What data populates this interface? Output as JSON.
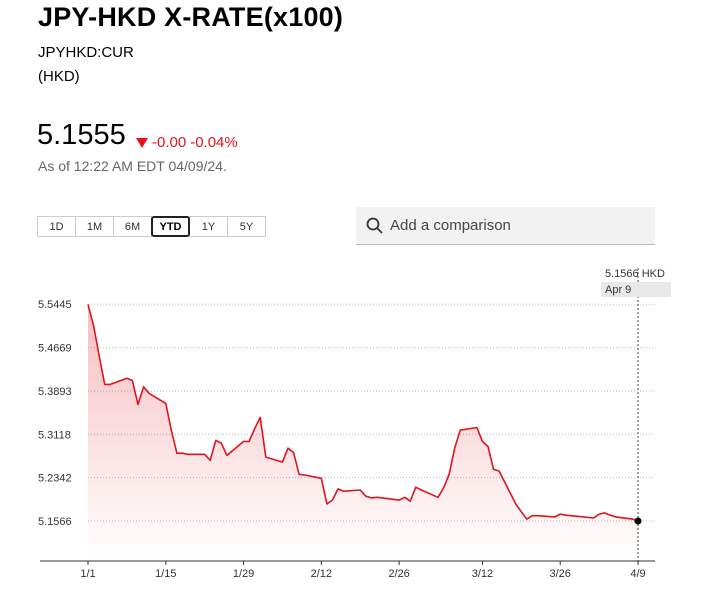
{
  "header": {
    "title": "JPY-HKD X-RATE(x100)",
    "ticker": "JPYHKD:CUR",
    "currency": "(HKD)",
    "price": "5.1555",
    "change": "-0.00",
    "change_pct": "-0.04%",
    "as_of": "As of 12:22 AM EDT 04/09/24."
  },
  "controls": {
    "ranges": [
      "1D",
      "1M",
      "6M",
      "YTD",
      "1Y",
      "5Y"
    ],
    "active_range": "YTD",
    "search_placeholder": "Add a comparison"
  },
  "chart_data": {
    "type": "line",
    "color": "#e0141e",
    "x": [
      "1/1",
      "1/2",
      "1/3",
      "1/4",
      "1/5",
      "1/8",
      "1/9",
      "1/10",
      "1/11",
      "1/12",
      "1/15",
      "1/16",
      "1/17",
      "1/18",
      "1/19",
      "1/22",
      "1/23",
      "1/24",
      "1/25",
      "1/26",
      "1/29",
      "1/30",
      "1/31",
      "2/1",
      "2/2",
      "2/5",
      "2/6",
      "2/7",
      "2/8",
      "2/9",
      "2/12",
      "2/13",
      "2/14",
      "2/15",
      "2/16",
      "2/19",
      "2/20",
      "2/21",
      "2/22",
      "2/23",
      "2/26",
      "2/27",
      "2/28",
      "2/29",
      "3/1",
      "3/4",
      "3/5",
      "3/6",
      "3/7",
      "3/8",
      "3/11",
      "3/12",
      "3/13",
      "3/14",
      "3/15",
      "3/18",
      "3/19",
      "3/20",
      "3/21",
      "3/22",
      "3/25",
      "3/26",
      "3/27",
      "3/28",
      "4/1",
      "4/2",
      "4/3",
      "4/4",
      "4/5",
      "4/8",
      "4/9"
    ],
    "values": [
      5.544,
      5.506,
      5.453,
      5.401,
      5.401,
      5.412,
      5.408,
      5.365,
      5.397,
      5.385,
      5.367,
      5.319,
      5.278,
      5.278,
      5.276,
      5.276,
      5.265,
      5.301,
      5.296,
      5.274,
      5.299,
      5.299,
      5.322,
      5.342,
      5.271,
      5.262,
      5.287,
      5.279,
      5.24,
      5.239,
      5.233,
      5.187,
      5.194,
      5.214,
      5.21,
      5.212,
      5.201,
      5.198,
      5.199,
      5.198,
      5.194,
      5.199,
      5.192,
      5.217,
      5.212,
      5.199,
      5.216,
      5.24,
      5.287,
      5.319,
      5.324,
      5.299,
      5.29,
      5.249,
      5.246,
      5.187,
      5.173,
      5.16,
      5.166,
      5.166,
      5.164,
      5.169,
      5.167,
      5.166,
      5.162,
      5.169,
      5.171,
      5.167,
      5.164,
      5.16,
      5.1566
    ],
    "xlim": [
      "1/1",
      "4/9"
    ],
    "xticks": [
      "1/1",
      "1/15",
      "1/29",
      "2/12",
      "2/26",
      "3/12",
      "3/26",
      "4/9"
    ],
    "ylim": [
      5.085,
      5.57
    ],
    "yticks": [
      5.1566,
      5.2342,
      5.3118,
      5.3893,
      5.4669,
      5.5445
    ],
    "grid": true,
    "tooltip": {
      "value": "5.1566 HKD",
      "date": "Apr 9"
    }
  }
}
